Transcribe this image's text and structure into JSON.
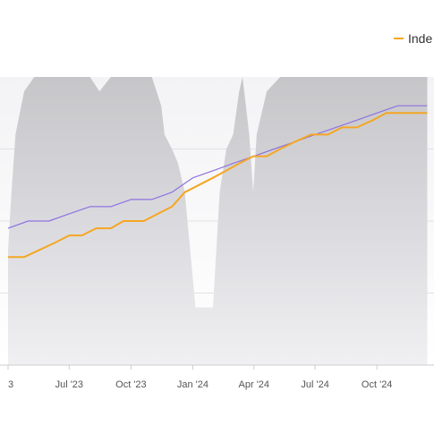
{
  "chart_data": {
    "type": "line",
    "title": "",
    "xlabel": "",
    "ylabel": "",
    "x_tick_labels": [
      "3",
      "Jul '23",
      "Oct '23",
      "Jan '24",
      "Apr '24",
      "Jul '24",
      "Oct '24"
    ],
    "grid": true,
    "legend_position": "top-right",
    "legend": [
      {
        "label": "Inde",
        "color": "#f5a623"
      }
    ],
    "colors": {
      "index_line": "#f5a623",
      "purple_line": "#8f72e0",
      "area_fill": "#cfcfd2",
      "grid": "#e2e2e2",
      "axis": "#cccccc"
    },
    "series": [
      {
        "name": "Inde",
        "type": "line",
        "x": [
          "2023-04-01",
          "2023-04-25",
          "2023-05-18",
          "2023-06-10",
          "2023-07-01",
          "2023-07-20",
          "2023-08-10",
          "2023-09-01",
          "2023-09-20",
          "2023-10-01",
          "2023-10-20",
          "2023-11-10",
          "2023-12-01",
          "2023-12-20",
          "2024-01-10",
          "2024-01-31",
          "2024-02-20",
          "2024-03-10",
          "2024-03-31",
          "2024-04-20",
          "2024-05-10",
          "2024-06-01",
          "2024-06-25",
          "2024-07-20",
          "2024-08-10",
          "2024-09-01",
          "2024-09-25",
          "2024-10-15",
          "2024-11-05",
          "2024-11-25",
          "2024-12-15"
        ],
        "values": [
          100,
          100,
          101,
          102,
          103,
          103,
          104,
          104,
          105,
          105,
          105,
          106,
          107,
          109,
          110,
          111,
          112,
          113,
          114,
          114,
          115,
          116,
          117,
          117,
          118,
          118,
          119,
          120,
          120,
          120,
          120
        ]
      },
      {
        "type": "line",
        "x": [
          "2023-04-01",
          "2023-05-01",
          "2023-06-01",
          "2023-07-01",
          "2023-08-01",
          "2023-09-01",
          "2023-10-01",
          "2023-11-01",
          "2023-12-01",
          "2024-01-01",
          "2024-02-01",
          "2024-03-01",
          "2024-04-01",
          "2024-05-01",
          "2024-06-01",
          "2024-07-01",
          "2024-08-01",
          "2024-09-01",
          "2024-10-01",
          "2024-11-01",
          "2024-12-15"
        ],
        "values": [
          104,
          105,
          105,
          106,
          107,
          107,
          108,
          108,
          109,
          111,
          112,
          113,
          114,
          115,
          116,
          117,
          118,
          119,
          120,
          121,
          121
        ]
      },
      {
        "type": "area",
        "x": [
          "2023-04-01",
          "2023-04-06",
          "2023-04-12",
          "2023-04-25",
          "2023-05-10",
          "2023-06-01",
          "2023-06-20",
          "2023-07-05",
          "2023-07-20",
          "2023-08-01",
          "2023-08-15",
          "2023-09-01",
          "2023-09-15",
          "2023-10-01",
          "2023-10-15",
          "2023-11-01",
          "2023-11-15",
          "2023-11-20",
          "2023-12-01",
          "2023-12-10",
          "2023-12-20",
          "2024-01-01",
          "2024-01-05",
          "2024-01-15",
          "2024-01-31",
          "2024-02-10",
          "2024-02-20",
          "2024-03-01",
          "2024-03-10",
          "2024-03-15",
          "2024-03-20",
          "2024-03-25",
          "2024-03-31",
          "2024-04-05",
          "2024-04-20",
          "2024-05-10",
          "2024-06-01",
          "2024-07-01",
          "2024-08-01",
          "2024-09-01",
          "2024-10-01",
          "2024-11-01",
          "2024-12-15"
        ],
        "values": [
          40,
          60,
          80,
          95,
          100,
          100,
          100,
          100,
          100,
          100,
          95,
          100,
          100,
          100,
          100,
          100,
          90,
          80,
          75,
          70,
          60,
          30,
          20,
          20,
          20,
          60,
          75,
          80,
          95,
          100,
          90,
          80,
          60,
          80,
          95,
          100,
          100,
          100,
          100,
          100,
          100,
          100,
          100
        ]
      }
    ]
  }
}
